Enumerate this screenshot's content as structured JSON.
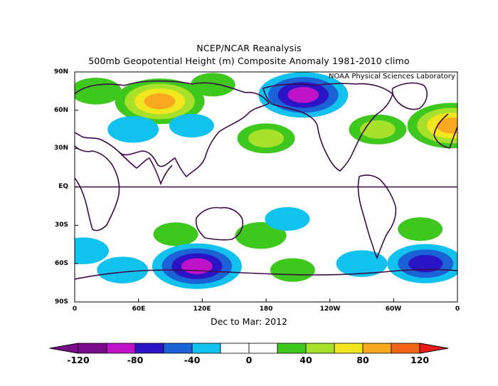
{
  "title": "NCEP/NCAR Reanalysis",
  "subtitle": "500mb Geopotential Height (m) Composite Anomaly 1981-2010 climo",
  "credit": "NOAA Physical Sciences Laboratory",
  "period": "Dec to Mar: 2012",
  "lat_labels": [
    "90N",
    "60N",
    "30N",
    "EQ",
    "30S",
    "60S",
    "90S"
  ],
  "lon_labels": [
    "0",
    "60E",
    "120E",
    "180",
    "120W",
    "60W",
    "0"
  ],
  "colorbar": {
    "labels": [
      "-120",
      "-80",
      "-40",
      "0",
      "40",
      "80",
      "120"
    ],
    "colors": [
      "#7a0a8c",
      "#c012c8",
      "#2b14c6",
      "#1a62d6",
      "#12c2ee",
      "#ffffff",
      "#ffffff",
      "#3ec81e",
      "#a8e12a",
      "#f2e61e",
      "#f7a81e",
      "#f06414",
      "#ee1a1a"
    ]
  },
  "map_colors": {
    "coast": "#3c0a46",
    "equator": "#3c0a46"
  },
  "chart_data": {
    "type": "heatmap",
    "variable": "500mb Geopotential Height Composite Anomaly (m)",
    "levels": [
      -120,
      -100,
      -80,
      -60,
      -40,
      -20,
      0,
      20,
      40,
      60,
      80,
      100,
      120
    ],
    "xlim": [
      0,
      360
    ],
    "ylim": [
      -90,
      90
    ],
    "anomalies": [
      {
        "lon": 80,
        "lat": 67,
        "value": 100
      },
      {
        "lon": 20,
        "lat": 75,
        "value": 40
      },
      {
        "lon": 130,
        "lat": 80,
        "value": 30
      },
      {
        "lon": 355,
        "lat": 48,
        "value": 100
      },
      {
        "lon": 285,
        "lat": 45,
        "value": 50
      },
      {
        "lon": 180,
        "lat": 38,
        "value": 50
      },
      {
        "lon": 215,
        "lat": 72,
        "value": -100
      },
      {
        "lon": 55,
        "lat": 45,
        "value": -40
      },
      {
        "lon": 110,
        "lat": 48,
        "value": -30
      },
      {
        "lon": 95,
        "lat": -37,
        "value": 30
      },
      {
        "lon": 175,
        "lat": -38,
        "value": 40
      },
      {
        "lon": 325,
        "lat": -33,
        "value": 30
      },
      {
        "lon": 200,
        "lat": -25,
        "value": -30
      },
      {
        "lon": 8,
        "lat": -50,
        "value": -40
      },
      {
        "lon": 115,
        "lat": -62,
        "value": -100
      },
      {
        "lon": 45,
        "lat": -65,
        "value": -40
      },
      {
        "lon": 330,
        "lat": -60,
        "value": -80
      },
      {
        "lon": 205,
        "lat": -65,
        "value": 30
      },
      {
        "lon": 270,
        "lat": -60,
        "value": -40
      }
    ]
  }
}
